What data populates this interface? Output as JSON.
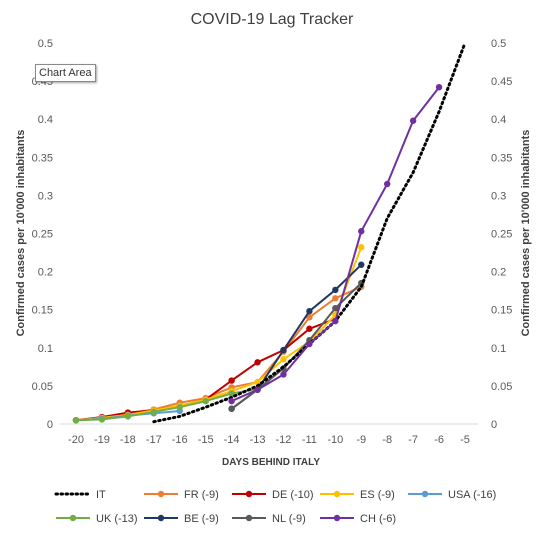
{
  "tooltip": "Chart Area",
  "chart_data": {
    "type": "line",
    "title": "COVID-19 Lag Tracker",
    "xlabel": "DAYS BEHIND ITALY",
    "ylabel": "Confirmed  cases per 10'000 inhabitants",
    "ylabel_right": "Confirmed  cases per 10'000 inhabitants",
    "xlim": [
      -20,
      -5
    ],
    "ylim": [
      0,
      0.5
    ],
    "x_ticks": [
      "-20",
      "-19",
      "-18",
      "-17",
      "-16",
      "-15",
      "-14",
      "-13",
      "-12",
      "-11",
      "-10",
      "-9",
      "-8",
      "-7",
      "-6",
      "-5"
    ],
    "y_ticks_left": [
      "0",
      "0.05",
      "0.1",
      "0.15",
      "0.2",
      "0.25",
      "0.3",
      "0.35",
      "0.4",
      "0.45",
      "0.5"
    ],
    "y_ticks_right": [
      "0",
      "0.05",
      "0.1",
      "0.15",
      "0.2",
      "0.25",
      "0.3",
      "0.35",
      "0.4",
      "0.45",
      "0.5"
    ],
    "grid": false,
    "legend_position": "bottom",
    "series": [
      {
        "name": "IT",
        "color": "#000000",
        "style": "dotted",
        "x": [
          -17,
          -16,
          -15,
          -14,
          -13,
          -12,
          -11,
          -10,
          -9,
          -8,
          -7,
          -6,
          -5
        ],
        "y": [
          0.003,
          0.01,
          0.022,
          0.035,
          0.05,
          0.075,
          0.105,
          0.135,
          0.18,
          0.27,
          0.33,
          0.41,
          0.5
        ]
      },
      {
        "name": "FR (-9)",
        "color": "#ED7D31",
        "style": "solid",
        "x": [
          -20,
          -19,
          -18,
          -17,
          -16,
          -15,
          -14,
          -13,
          -12,
          -11,
          -10,
          -9
        ],
        "y": [
          0.005,
          0.009,
          0.014,
          0.019,
          0.028,
          0.034,
          0.048,
          0.055,
          0.095,
          0.14,
          0.165,
          0.18
        ]
      },
      {
        "name": "DE (-10)",
        "color": "#C00000",
        "style": "solid",
        "x": [
          -20,
          -19,
          -18,
          -17,
          -16,
          -15,
          -14,
          -13,
          -12,
          -11,
          -10
        ],
        "y": [
          0.005,
          0.009,
          0.015,
          0.018,
          0.024,
          0.032,
          0.057,
          0.081,
          0.097,
          0.125,
          0.138
        ]
      },
      {
        "name": "ES (-9)",
        "color": "#FFC000",
        "style": "solid",
        "x": [
          -20,
          -19,
          -18,
          -17,
          -16,
          -15,
          -14,
          -13,
          -12,
          -11,
          -10,
          -9
        ],
        "y": [
          0.005,
          0.008,
          0.012,
          0.018,
          0.024,
          0.032,
          0.043,
          0.055,
          0.085,
          0.108,
          0.143,
          0.232
        ]
      },
      {
        "name": "USA (-16)",
        "color": "#5B9BD5",
        "style": "solid",
        "x": [
          -20,
          -19,
          -18,
          -17,
          -16
        ],
        "y": [
          0.005,
          0.007,
          0.011,
          0.014,
          0.017
        ]
      },
      {
        "name": "UK (-13)",
        "color": "#70AD47",
        "style": "solid",
        "x": [
          -20,
          -19,
          -18,
          -17,
          -16,
          -15,
          -14,
          -13
        ],
        "y": [
          0.005,
          0.006,
          0.01,
          0.016,
          0.022,
          0.03,
          0.04,
          0.046
        ]
      },
      {
        "name": "BE (-9)",
        "color": "#1F3864",
        "style": "solid",
        "x": [
          -14,
          -13,
          -12,
          -11,
          -10,
          -9
        ],
        "y": [
          0.02,
          0.045,
          0.097,
          0.148,
          0.176,
          0.209
        ]
      },
      {
        "name": "NL (-9)",
        "color": "#595959",
        "style": "solid",
        "x": [
          -14,
          -13,
          -12,
          -11,
          -10,
          -9
        ],
        "y": [
          0.02,
          0.045,
          0.073,
          0.11,
          0.152,
          0.185
        ]
      },
      {
        "name": "CH (-6)",
        "color": "#7030A0",
        "style": "solid",
        "x": [
          -14,
          -13,
          -12,
          -11,
          -10,
          -9,
          -8,
          -7,
          -6
        ],
        "y": [
          0.03,
          0.045,
          0.065,
          0.105,
          0.135,
          0.253,
          0.315,
          0.398,
          0.442
        ]
      }
    ]
  }
}
